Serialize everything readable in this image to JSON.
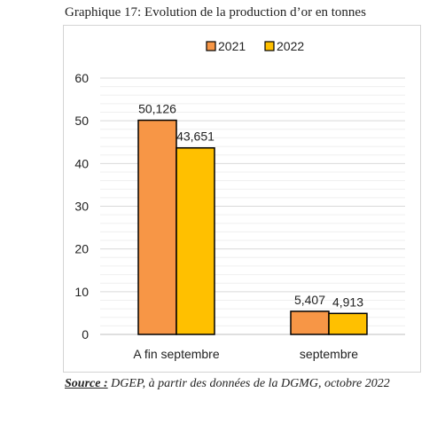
{
  "caption": "Graphique 17: Evolution de la production d’or en tonnes",
  "source": {
    "label": "Source :",
    "text": " DGEP, à partir des données de la DGMG, octobre 2022"
  },
  "chart_data": {
    "type": "bar",
    "categories": [
      "A fin septembre",
      "septembre"
    ],
    "series": [
      {
        "name": "2021",
        "values": [
          50.126,
          5.407
        ],
        "labels": [
          "50,126",
          "5,407"
        ],
        "color": "#F79646"
      },
      {
        "name": "2022",
        "values": [
          43.651,
          4.913
        ],
        "labels": [
          "43,651",
          "4,913"
        ],
        "color": "#FFC000"
      }
    ],
    "ylim": [
      0,
      60
    ],
    "yticks": [
      "0",
      "10",
      "20",
      "30",
      "40",
      "50",
      "60"
    ],
    "grid": true,
    "legend_position": "top-center",
    "bar_border_color": "#000000"
  }
}
